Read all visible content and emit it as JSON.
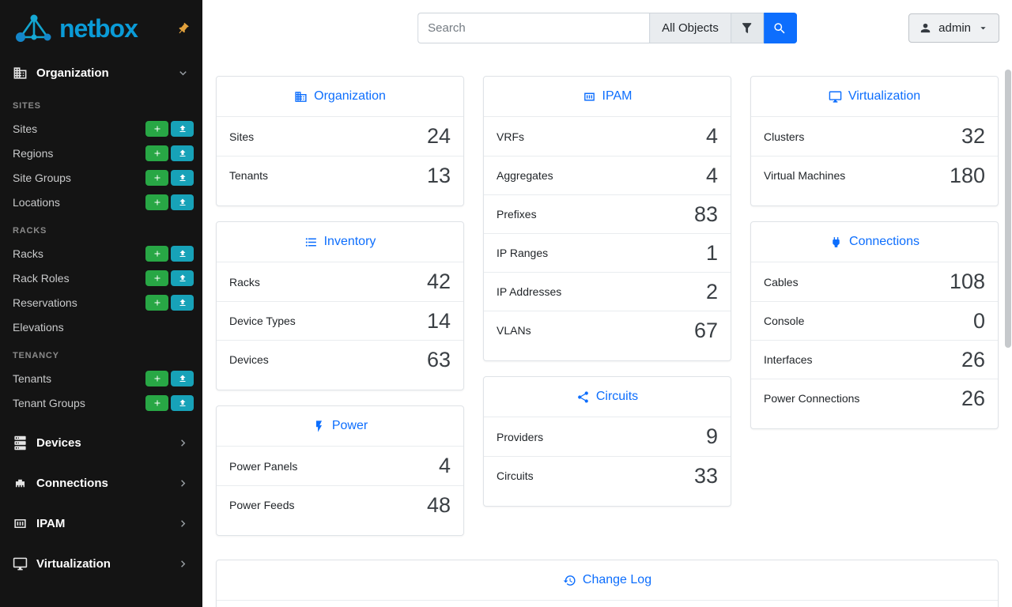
{
  "sidebar": {
    "brand": "netbox",
    "top_section": {
      "label": "Organization",
      "icon": "building-icon",
      "state": "expanded"
    },
    "groups": [
      {
        "heading": "SITES",
        "items": [
          {
            "label": "Sites",
            "buttons": true
          },
          {
            "label": "Regions",
            "buttons": true
          },
          {
            "label": "Site Groups",
            "buttons": true
          },
          {
            "label": "Locations",
            "buttons": true
          }
        ]
      },
      {
        "heading": "RACKS",
        "items": [
          {
            "label": "Racks",
            "buttons": true
          },
          {
            "label": "Rack Roles",
            "buttons": true
          },
          {
            "label": "Reservations",
            "buttons": true
          },
          {
            "label": "Elevations",
            "buttons": false
          }
        ]
      },
      {
        "heading": "TENANCY",
        "items": [
          {
            "label": "Tenants",
            "buttons": true
          },
          {
            "label": "Tenant Groups",
            "buttons": true
          }
        ]
      }
    ],
    "more_sections": [
      {
        "label": "Devices",
        "icon": "server-icon"
      },
      {
        "label": "Connections",
        "icon": "ethernet-icon"
      },
      {
        "label": "IPAM",
        "icon": "counter-icon"
      },
      {
        "label": "Virtualization",
        "icon": "monitor-icon"
      }
    ]
  },
  "header": {
    "search_placeholder": "Search",
    "scope": "All Objects",
    "user": "admin"
  },
  "dashboard": {
    "columns": [
      [
        {
          "title": "Organization",
          "icon": "building-icon",
          "rows": [
            {
              "label": "Sites",
              "value": 24
            },
            {
              "label": "Tenants",
              "value": 13
            }
          ]
        },
        {
          "title": "Inventory",
          "icon": "list-icon",
          "rows": [
            {
              "label": "Racks",
              "value": 42
            },
            {
              "label": "Device Types",
              "value": 14
            },
            {
              "label": "Devices",
              "value": 63
            }
          ]
        },
        {
          "title": "Power",
          "icon": "bolt-icon",
          "rows": [
            {
              "label": "Power Panels",
              "value": 4
            },
            {
              "label": "Power Feeds",
              "value": 48
            }
          ]
        }
      ],
      [
        {
          "title": "IPAM",
          "icon": "counter-icon",
          "rows": [
            {
              "label": "VRFs",
              "value": 4
            },
            {
              "label": "Aggregates",
              "value": 4
            },
            {
              "label": "Prefixes",
              "value": 83
            },
            {
              "label": "IP Ranges",
              "value": 1
            },
            {
              "label": "IP Addresses",
              "value": 2
            },
            {
              "label": "VLANs",
              "value": 67
            }
          ]
        },
        {
          "title": "Circuits",
          "icon": "share-icon",
          "rows": [
            {
              "label": "Providers",
              "value": 9
            },
            {
              "label": "Circuits",
              "value": 33
            }
          ]
        }
      ],
      [
        {
          "title": "Virtualization",
          "icon": "monitor-icon",
          "rows": [
            {
              "label": "Clusters",
              "value": 32
            },
            {
              "label": "Virtual Machines",
              "value": 180
            }
          ]
        },
        {
          "title": "Connections",
          "icon": "cable-icon",
          "rows": [
            {
              "label": "Cables",
              "value": 108
            },
            {
              "label": "Console",
              "value": 0
            },
            {
              "label": "Interfaces",
              "value": 26
            },
            {
              "label": "Power Connections",
              "value": 26
            }
          ]
        }
      ]
    ],
    "changelog": {
      "title": "Change Log",
      "icon": "history-icon"
    }
  },
  "colors": {
    "accent": "#0d6efd",
    "brand": "#0a9bd7",
    "add_button": "#28a745",
    "import_button": "#17a2b8",
    "pin": "#e2a13c",
    "sidebar_bg": "#141414"
  }
}
